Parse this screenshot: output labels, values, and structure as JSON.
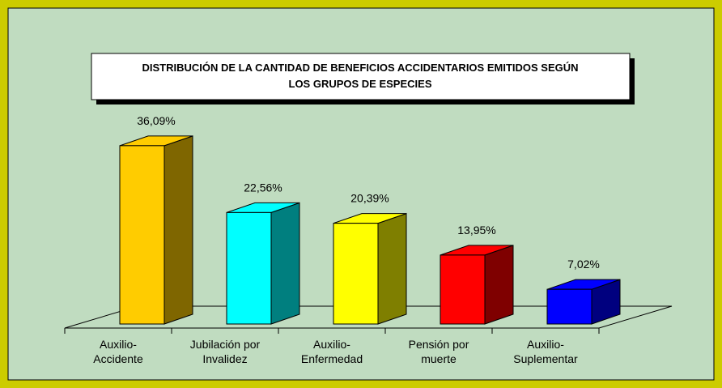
{
  "chart_data": {
    "type": "bar3d",
    "title": "DISTRIBUCIÓN DE LA CANTIDAD DE BENEFICIOS ACCIDENTARIOS EMITIDOS SEGÚN\nLOS GRUPOS DE ESPECIES",
    "categories": [
      "Auxilio-\nAccidente",
      "Jubilación por\nInvalidez",
      "Auxilio-\nEnfermedad",
      "Pensión por\nmuerte",
      "Auxilio-\nSuplementar"
    ],
    "values": [
      36.09,
      22.56,
      20.39,
      13.95,
      7.02
    ],
    "value_labels": [
      "36,09%",
      "22,56%",
      "20,39%",
      "13,95%",
      "7,02%"
    ],
    "colors": [
      "#ffcc00",
      "#00ffff",
      "#ffff00",
      "#ff0000",
      "#0000ff"
    ]
  }
}
